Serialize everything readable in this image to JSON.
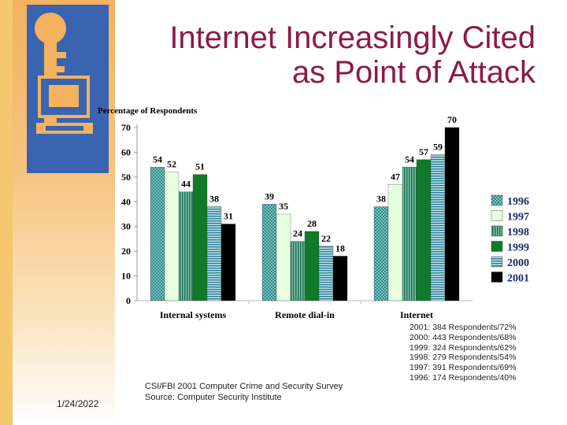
{
  "slide": {
    "title_line1": "Internet Increasingly Cited",
    "title_line2": "as Point of Attack",
    "date": "1/24/2022",
    "source_line1": "CSI/FBI 2001 Computer Crime and Security Survey",
    "source_line2": "Source:  Computer Security Institute",
    "respondents": [
      "2001: 384 Respondents/72%",
      "2000: 443 Respondents/68%",
      "1999: 324 Respondents/62%",
      "1998: 279 Respondents/54%",
      "1997: 391 Respondents/69%",
      "1996: 174 Respondents/40%"
    ]
  },
  "chart_data": {
    "type": "bar",
    "ylabel": "Percentage of Respondents",
    "ylim": [
      0,
      70
    ],
    "yticks": [
      0,
      10,
      20,
      30,
      40,
      50,
      60,
      70
    ],
    "categories": [
      "Internal systems",
      "Remote dial-in",
      "Internet"
    ],
    "legend_position": "right",
    "series": [
      {
        "name": "1996",
        "values": [
          54,
          39,
          38
        ],
        "color": "#2e8b8b",
        "pattern": "dots"
      },
      {
        "name": "1997",
        "values": [
          52,
          35,
          47
        ],
        "color": "#e6ffe0",
        "pattern": "solid"
      },
      {
        "name": "1998",
        "values": [
          44,
          24,
          54
        ],
        "color": "#3a9a7a",
        "pattern": "vlines"
      },
      {
        "name": "1999",
        "values": [
          51,
          28,
          57
        ],
        "color": "#0f7a2a",
        "pattern": "solid"
      },
      {
        "name": "2000",
        "values": [
          38,
          22,
          59
        ],
        "color": "#2f8fa0",
        "pattern": "hlines"
      },
      {
        "name": "2001",
        "values": [
          31,
          18,
          70
        ],
        "color": "#000000",
        "pattern": "solid"
      }
    ]
  }
}
